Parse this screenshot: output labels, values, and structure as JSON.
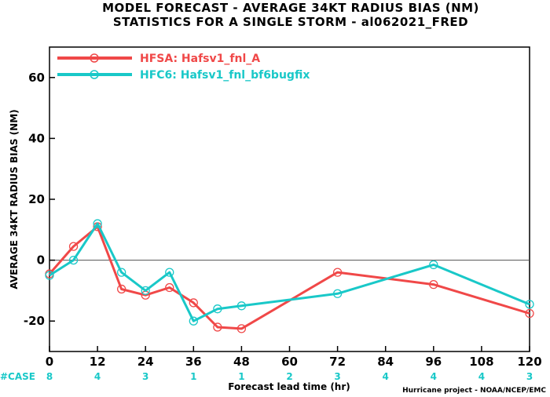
{
  "title": {
    "line1": "MODEL FORECAST - AVERAGE 34KT RADIUS BIAS (NM)",
    "line2": "STATISTICS FOR A SINGLE STORM - al062021_FRED"
  },
  "credit": "Hurricane project - NOAA/NCEP/EMC",
  "case_label": "#CASE",
  "colors": {
    "hfsa": "#f04848",
    "hfc6": "#19c8c8",
    "case_label": "#19c8c8",
    "zero_line": "#505050"
  },
  "chart_data": {
    "type": "line",
    "xlabel": "Forecast lead time (hr)",
    "ylabel": "AVERAGE 34KT RADIUS BIAS (NM)",
    "xlim": [
      0,
      120
    ],
    "ylim": [
      -30,
      70
    ],
    "xticks": [
      0,
      12,
      24,
      36,
      48,
      60,
      72,
      84,
      96,
      108,
      120
    ],
    "yticks": [
      -20,
      0,
      20,
      40,
      60
    ],
    "grid": false,
    "legend_position": "top-left",
    "series": [
      {
        "name": "HFSA: Hafsv1_fnl_A",
        "color": "#f04848",
        "points": [
          [
            0,
            -4.5
          ],
          [
            6,
            4.5
          ],
          [
            12,
            11
          ],
          [
            18,
            -9.5
          ],
          [
            24,
            -11.5
          ],
          [
            30,
            -9
          ],
          [
            36,
            -14
          ],
          [
            42,
            -22
          ],
          [
            48,
            -22.5
          ],
          [
            72,
            -4
          ],
          [
            96,
            -8
          ],
          [
            120,
            -17.5
          ]
        ]
      },
      {
        "name": "HFC6: Hafsv1_fnl_bf6bugfix",
        "color": "#19c8c8",
        "points": [
          [
            0,
            -5
          ],
          [
            6,
            0
          ],
          [
            12,
            12
          ],
          [
            18,
            -4
          ],
          [
            24,
            -10
          ],
          [
            30,
            -4
          ],
          [
            36,
            -20
          ],
          [
            42,
            -16
          ],
          [
            48,
            -15
          ],
          [
            72,
            -11
          ],
          [
            96,
            -1.5
          ],
          [
            120,
            -14.5
          ]
        ]
      }
    ],
    "cases": {
      "x": [
        0,
        12,
        24,
        36,
        48,
        60,
        72,
        84,
        96,
        108,
        120
      ],
      "values": [
        "8",
        "4",
        "3",
        "1",
        "1",
        "2",
        "3",
        "4",
        "4",
        "4",
        "3"
      ]
    }
  }
}
